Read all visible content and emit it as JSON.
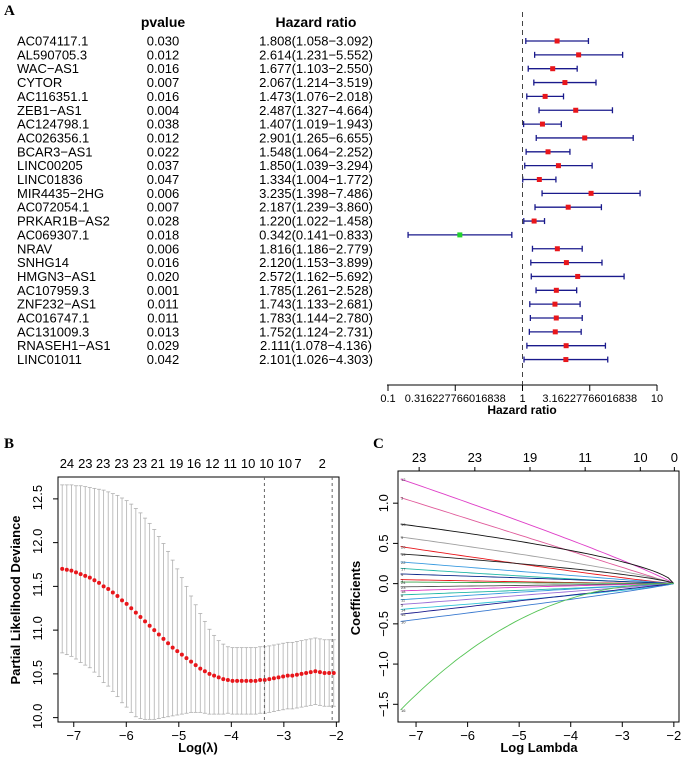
{
  "chart_data": [
    {
      "type": "forest",
      "panel_label": "A",
      "header_pvalue": "pvalue",
      "header_hr": "Hazard ratio",
      "xlabel": "Hazard ratio",
      "x_scale": "log10",
      "xlim": [
        0.1,
        10
      ],
      "tick_values": [
        0.1,
        0.316227766016838,
        1,
        3.16227766016838,
        10
      ],
      "tick_labels": [
        "0.1",
        "0.316227766016838",
        "1",
        "3.16227766016838",
        "10"
      ],
      "reference_line": 1,
      "point_colors": {
        "risk": "#e8161b",
        "protective": "#22d12e"
      },
      "ci_color": "#1a1a8c",
      "rows": [
        {
          "gene": "AC074117.1",
          "pvalue": "0.030",
          "hr_text": "1.808(1.058−3.092)",
          "hr": 1.808,
          "lo": 1.058,
          "hi": 3.092
        },
        {
          "gene": "AL590705.3",
          "pvalue": "0.012",
          "hr_text": "2.614(1.231−5.552)",
          "hr": 2.614,
          "lo": 1.231,
          "hi": 5.552
        },
        {
          "gene": "WAC−AS1",
          "pvalue": "0.016",
          "hr_text": "1.677(1.103−2.550)",
          "hr": 1.677,
          "lo": 1.103,
          "hi": 2.55
        },
        {
          "gene": "CYTOR",
          "pvalue": "0.007",
          "hr_text": "2.067(1.214−3.519)",
          "hr": 2.067,
          "lo": 1.214,
          "hi": 3.519
        },
        {
          "gene": "AC116351.1",
          "pvalue": "0.016",
          "hr_text": "1.473(1.076−2.018)",
          "hr": 1.473,
          "lo": 1.076,
          "hi": 2.018
        },
        {
          "gene": "ZEB1−AS1",
          "pvalue": "0.004",
          "hr_text": "2.487(1.327−4.664)",
          "hr": 2.487,
          "lo": 1.327,
          "hi": 4.664
        },
        {
          "gene": "AC124798.1",
          "pvalue": "0.038",
          "hr_text": "1.407(1.019−1.943)",
          "hr": 1.407,
          "lo": 1.019,
          "hi": 1.943
        },
        {
          "gene": "AC026356.1",
          "pvalue": "0.012",
          "hr_text": "2.901(1.265−6.655)",
          "hr": 2.901,
          "lo": 1.265,
          "hi": 6.655
        },
        {
          "gene": "BCAR3−AS1",
          "pvalue": "0.022",
          "hr_text": "1.548(1.064−2.252)",
          "hr": 1.548,
          "lo": 1.064,
          "hi": 2.252
        },
        {
          "gene": "LINC00205",
          "pvalue": "0.037",
          "hr_text": "1.850(1.039−3.294)",
          "hr": 1.85,
          "lo": 1.039,
          "hi": 3.294
        },
        {
          "gene": "LINC01836",
          "pvalue": "0.047",
          "hr_text": "1.334(1.004−1.772)",
          "hr": 1.334,
          "lo": 1.004,
          "hi": 1.772
        },
        {
          "gene": "MIR4435−2HG",
          "pvalue": "0.006",
          "hr_text": "3.235(1.398−7.486)",
          "hr": 3.235,
          "lo": 1.398,
          "hi": 7.486
        },
        {
          "gene": "AC072054.1",
          "pvalue": "0.007",
          "hr_text": "2.187(1.239−3.860)",
          "hr": 2.187,
          "lo": 1.239,
          "hi": 3.86
        },
        {
          "gene": "PRKAR1B−AS2",
          "pvalue": "0.028",
          "hr_text": "1.220(1.022−1.458)",
          "hr": 1.22,
          "lo": 1.022,
          "hi": 1.458
        },
        {
          "gene": "AC069307.1",
          "pvalue": "0.018",
          "hr_text": "0.342(0.141−0.833)",
          "hr": 0.342,
          "lo": 0.141,
          "hi": 0.833
        },
        {
          "gene": "NRAV",
          "pvalue": "0.006",
          "hr_text": "1.816(1.186−2.779)",
          "hr": 1.816,
          "lo": 1.186,
          "hi": 2.779
        },
        {
          "gene": "SNHG14",
          "pvalue": "0.016",
          "hr_text": "2.120(1.153−3.899)",
          "hr": 2.12,
          "lo": 1.153,
          "hi": 3.899
        },
        {
          "gene": "HMGN3−AS1",
          "pvalue": "0.020",
          "hr_text": "2.572(1.162−5.692)",
          "hr": 2.572,
          "lo": 1.162,
          "hi": 5.692
        },
        {
          "gene": "AC107959.3",
          "pvalue": "0.001",
          "hr_text": "1.785(1.261−2.528)",
          "hr": 1.785,
          "lo": 1.261,
          "hi": 2.528
        },
        {
          "gene": "ZNF232−AS1",
          "pvalue": "0.011",
          "hr_text": "1.743(1.133−2.681)",
          "hr": 1.743,
          "lo": 1.133,
          "hi": 2.681
        },
        {
          "gene": "AC016747.1",
          "pvalue": "0.011",
          "hr_text": "1.783(1.144−2.780)",
          "hr": 1.783,
          "lo": 1.144,
          "hi": 2.78
        },
        {
          "gene": "AC131009.3",
          "pvalue": "0.013",
          "hr_text": "1.752(1.124−2.731)",
          "hr": 1.752,
          "lo": 1.124,
          "hi": 2.731
        },
        {
          "gene": "RNASEH1−AS1",
          "pvalue": "0.029",
          "hr_text": "2.111(1.078−4.136)",
          "hr": 2.111,
          "lo": 1.078,
          "hi": 4.136
        },
        {
          "gene": "LINC01011",
          "pvalue": "0.042",
          "hr_text": "2.101(1.026−4.303)",
          "hr": 2.101,
          "lo": 1.026,
          "hi": 4.303
        }
      ]
    },
    {
      "type": "line",
      "panel_label": "B",
      "xlabel": "Log(λ)",
      "ylabel": "Partial Likelihood Deviance",
      "xlim": [
        -7.3,
        -1.95
      ],
      "ylim": [
        9.95,
        12.75
      ],
      "x_ticks": [
        -7,
        -6,
        -5,
        -4,
        -3,
        -2
      ],
      "x_tick_labels": [
        "−7",
        "−6",
        "−5",
        "−4",
        "−3",
        "−2"
      ],
      "y_ticks": [
        10.0,
        10.5,
        11.0,
        11.5,
        12.0,
        12.5
      ],
      "y_tick_labels": [
        "10.0",
        "10.5",
        "11.0",
        "11.5",
        "12.0",
        "12.5"
      ],
      "top_labels": [
        {
          "x": -7.13,
          "label": "24"
        },
        {
          "x": -6.78,
          "label": "23"
        },
        {
          "x": -6.44,
          "label": "23"
        },
        {
          "x": -6.09,
          "label": "23"
        },
        {
          "x": -5.74,
          "label": "23"
        },
        {
          "x": -5.4,
          "label": "21"
        },
        {
          "x": -5.05,
          "label": "19"
        },
        {
          "x": -4.71,
          "label": "16"
        },
        {
          "x": -4.36,
          "label": "12"
        },
        {
          "x": -4.02,
          "label": "11"
        },
        {
          "x": -3.68,
          "label": "10"
        },
        {
          "x": -3.33,
          "label": "10"
        },
        {
          "x": -2.98,
          "label": "10"
        },
        {
          "x": -2.73,
          "label": "7"
        },
        {
          "x": -2.27,
          "label": "2"
        }
      ],
      "lambda_min": -3.37,
      "lambda_1se": -2.08,
      "point_color": "#e8161b",
      "series": {
        "x_start": -7.22,
        "x_end": -2.05,
        "n": 60,
        "y": [
          11.7,
          11.69,
          11.68,
          11.66,
          11.64,
          11.62,
          11.6,
          11.57,
          11.54,
          11.5,
          11.47,
          11.43,
          11.39,
          11.34,
          11.3,
          11.25,
          11.2,
          11.15,
          11.1,
          11.05,
          11.0,
          10.95,
          10.9,
          10.85,
          10.8,
          10.76,
          10.72,
          10.68,
          10.64,
          10.6,
          10.56,
          10.53,
          10.5,
          10.48,
          10.46,
          10.44,
          10.43,
          10.42,
          10.42,
          10.42,
          10.42,
          10.42,
          10.42,
          10.43,
          10.43,
          10.44,
          10.45,
          10.46,
          10.47,
          10.48,
          10.48,
          10.49,
          10.5,
          10.51,
          10.52,
          10.53,
          10.52,
          10.51,
          10.51,
          10.51
        ],
        "upper": [
          12.66,
          12.66,
          12.66,
          12.65,
          12.65,
          12.64,
          12.63,
          12.62,
          12.61,
          12.6,
          12.58,
          12.56,
          12.54,
          12.51,
          12.48,
          12.44,
          12.39,
          12.34,
          12.28,
          12.22,
          12.15,
          12.07,
          11.99,
          11.9,
          11.8,
          11.7,
          11.6,
          11.5,
          11.39,
          11.29,
          11.19,
          11.1,
          11.01,
          10.94,
          10.88,
          10.84,
          10.81,
          10.8,
          10.8,
          10.8,
          10.8,
          10.8,
          10.8,
          10.81,
          10.81,
          10.82,
          10.83,
          10.84,
          10.85,
          10.86,
          10.86,
          10.87,
          10.88,
          10.89,
          10.9,
          10.91,
          10.9,
          10.89,
          10.89,
          10.89
        ],
        "lower": [
          10.74,
          10.72,
          10.7,
          10.67,
          10.63,
          10.6,
          10.57,
          10.52,
          10.47,
          10.4,
          10.36,
          10.3,
          10.24,
          10.17,
          10.12,
          10.06,
          10.01,
          9.99,
          9.98,
          9.98,
          9.98,
          9.99,
          10.0,
          10.01,
          10.02,
          10.03,
          10.04,
          10.05,
          10.06,
          10.06,
          10.06,
          10.05,
          10.04,
          10.04,
          10.04,
          10.04,
          10.05,
          10.04,
          10.04,
          10.04,
          10.04,
          10.04,
          10.04,
          10.05,
          10.05,
          10.06,
          10.07,
          10.08,
          10.09,
          10.1,
          10.1,
          10.11,
          10.12,
          10.13,
          10.14,
          10.15,
          10.14,
          10.13,
          10.13,
          10.13
        ]
      }
    },
    {
      "type": "line",
      "panel_label": "C",
      "xlabel": "Log Lambda",
      "ylabel": "Coefficients",
      "xlim": [
        -7.35,
        -1.9
      ],
      "ylim": [
        -1.72,
        1.4
      ],
      "x_ticks": [
        -7,
        -6,
        -5,
        -4,
        -3,
        -2
      ],
      "x_tick_labels": [
        "−7",
        "−6",
        "−5",
        "−4",
        "−3",
        "−2"
      ],
      "y_ticks": [
        -1.5,
        -1.0,
        -0.5,
        0.0,
        0.5,
        1.0
      ],
      "y_tick_labels": [
        "−1.5",
        "−1.0",
        "−0.5",
        "0.0",
        "0.5",
        "1.0"
      ],
      "top_labels": [
        {
          "x": -6.94,
          "label": "23"
        },
        {
          "x": -5.86,
          "label": "23"
        },
        {
          "x": -4.79,
          "label": "19"
        },
        {
          "x": -3.72,
          "label": "11"
        },
        {
          "x": -2.65,
          "label": "10"
        },
        {
          "x": -1.99,
          "label": "0"
        }
      ],
      "left_index_labels": [
        "12",
        "3",
        "13",
        "9",
        "20",
        "19",
        "22",
        "17",
        "4",
        "1",
        "24",
        "23",
        "18",
        "8",
        "11",
        "5",
        "14",
        "15",
        "10",
        "16"
      ],
      "series": [
        {
          "color": "#df3fc8",
          "start": 1.3,
          "shape": 0.9
        },
        {
          "color": "#e05a9a",
          "start": 1.07,
          "shape": 1.0
        },
        {
          "color": "#111111",
          "start": 0.74,
          "shape": 0.6
        },
        {
          "color": "#a0a0a0",
          "start": 0.58,
          "shape": 0.8
        },
        {
          "color": "#e8161b",
          "start": 0.46,
          "shape": 1.1
        },
        {
          "color": "#222222",
          "start": 0.37,
          "shape": 0.7
        },
        {
          "color": "#3a9be0",
          "start": 0.27,
          "shape": 1.0
        },
        {
          "color": "#22b8a8",
          "start": 0.19,
          "shape": 1.2
        },
        {
          "color": "#0d2a8a",
          "start": 0.12,
          "shape": 0.9
        },
        {
          "color": "#e8161b",
          "start": 0.05,
          "shape": 1.3
        },
        {
          "color": "#3aa54a",
          "start": 0.02,
          "shape": 1.1
        },
        {
          "color": "#555555",
          "start": -0.04,
          "shape": 1.0
        },
        {
          "color": "#df3fc8",
          "start": -0.09,
          "shape": 1.2
        },
        {
          "color": "#22b8a8",
          "start": -0.14,
          "shape": 0.9
        },
        {
          "color": "#3a9be0",
          "start": -0.2,
          "shape": 1.1
        },
        {
          "color": "#9a6dd6",
          "start": -0.26,
          "shape": 1.0
        },
        {
          "color": "#30c5d8",
          "start": -0.32,
          "shape": 0.8
        },
        {
          "color": "#1a1a8c",
          "start": -0.38,
          "shape": 1.0
        },
        {
          "color": "#3a7ad0",
          "start": -0.47,
          "shape": 0.9
        },
        {
          "color": "#55c455",
          "start": -1.57,
          "shape": 2.2
        }
      ]
    }
  ]
}
